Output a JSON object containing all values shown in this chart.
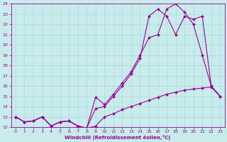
{
  "xlabel": "Windchill (Refroidissement éolien,°C)",
  "xlim": [
    -0.5,
    23.5
  ],
  "ylim": [
    12,
    24
  ],
  "yticks": [
    12,
    13,
    14,
    15,
    16,
    17,
    18,
    19,
    20,
    21,
    22,
    23,
    24
  ],
  "xticks": [
    0,
    1,
    2,
    3,
    4,
    5,
    6,
    7,
    8,
    9,
    10,
    11,
    12,
    13,
    14,
    15,
    16,
    17,
    18,
    19,
    20,
    21,
    22,
    23
  ],
  "bg_color": "#c8ecec",
  "line_color": "#990099",
  "grid_color": "#b0d8d8",
  "line1_x": [
    0,
    1,
    2,
    3,
    4,
    5,
    6,
    7,
    8,
    9,
    10,
    11,
    12,
    13,
    14,
    15,
    16,
    17,
    18,
    19,
    20,
    21,
    22,
    23
  ],
  "line1_y": [
    13.0,
    12.5,
    12.6,
    13.0,
    12.1,
    12.5,
    12.6,
    12.1,
    11.9,
    12.1,
    13.0,
    13.3,
    13.7,
    14.0,
    14.3,
    14.6,
    14.9,
    15.2,
    15.4,
    15.6,
    15.7,
    15.8,
    15.9,
    15.0
  ],
  "line2_x": [
    0,
    1,
    2,
    3,
    4,
    5,
    6,
    7,
    8,
    9,
    10,
    11,
    12,
    13,
    14,
    15,
    16,
    17,
    18,
    19,
    20,
    21,
    22,
    23
  ],
  "line2_y": [
    13.0,
    12.5,
    12.6,
    13.0,
    12.1,
    12.5,
    12.6,
    12.1,
    11.9,
    14.9,
    14.2,
    15.2,
    16.3,
    17.4,
    19.0,
    20.7,
    21.0,
    23.5,
    24.0,
    23.2,
    22.0,
    19.0,
    16.0,
    15.0
  ],
  "line3_x": [
    0,
    1,
    2,
    3,
    4,
    5,
    6,
    7,
    8,
    9,
    10,
    11,
    12,
    13,
    14,
    15,
    16,
    17,
    18,
    19,
    20,
    21,
    22,
    23
  ],
  "line3_y": [
    13.0,
    12.5,
    12.6,
    13.0,
    12.1,
    12.5,
    12.6,
    12.1,
    11.9,
    13.8,
    14.0,
    15.0,
    16.0,
    17.2,
    18.7,
    22.8,
    23.5,
    22.8,
    21.0,
    22.8,
    22.5,
    22.8,
    16.0,
    15.0
  ]
}
